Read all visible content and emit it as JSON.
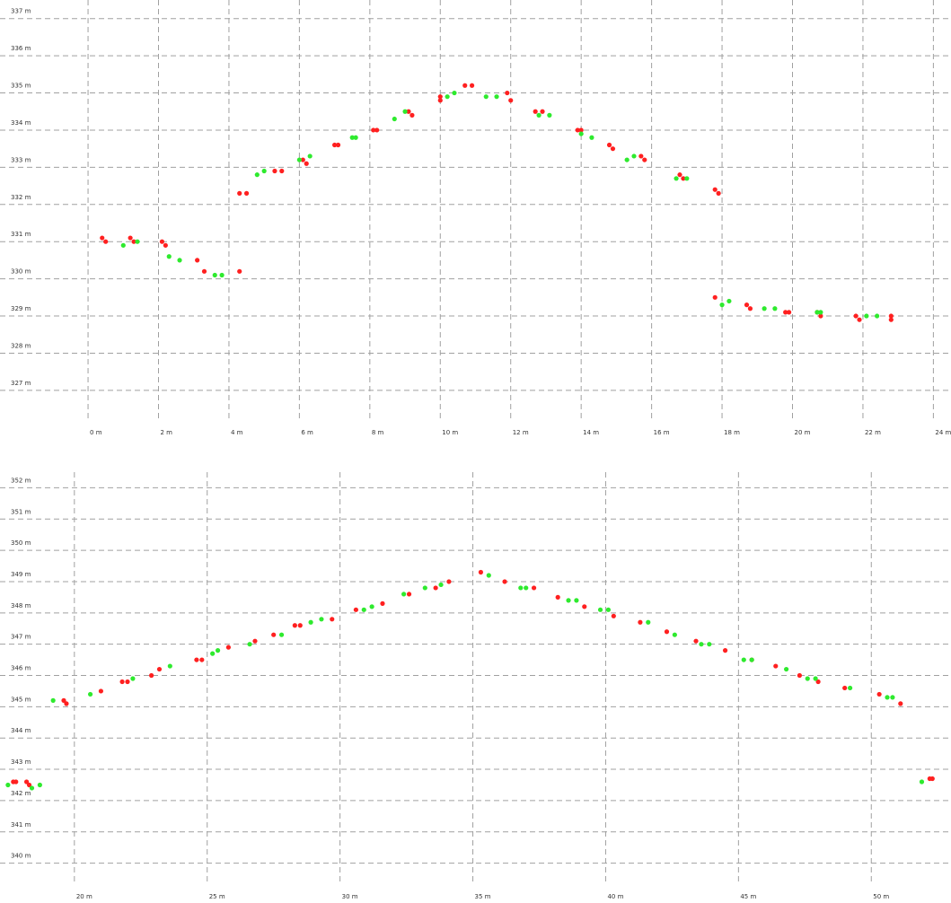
{
  "colors": {
    "series_a": "#ff2020",
    "series_b": "#2eea2e",
    "grid": "#a0a0a0"
  },
  "chart_data": [
    {
      "type": "scatter",
      "grid": true,
      "xlim": [
        -2.5,
        24.5
      ],
      "ylim": [
        326.2,
        337.5
      ],
      "x_ticks": [
        0,
        2,
        4,
        6,
        8,
        10,
        12,
        14,
        16,
        18,
        20,
        22,
        24
      ],
      "x_tick_labels": [
        "0 m",
        "2 m",
        "4 m",
        "6 m",
        "8 m",
        "10 m",
        "12 m",
        "14 m",
        "16 m",
        "18 m",
        "20 m",
        "22 m",
        "24 m"
      ],
      "y_ticks": [
        327,
        328,
        329,
        330,
        331,
        332,
        333,
        334,
        335,
        336,
        337
      ],
      "y_tick_labels": [
        "327 m",
        "328 m",
        "329 m",
        "330 m",
        "331 m",
        "332 m",
        "333 m",
        "334 m",
        "335 m",
        "336 m",
        "337 m"
      ],
      "series": [
        {
          "color": "#ff2020",
          "points": [
            [
              0.4,
              331.1
            ],
            [
              0.5,
              331.0
            ],
            [
              1.2,
              331.1
            ],
            [
              1.3,
              331.0
            ],
            [
              2.1,
              331.0
            ],
            [
              2.2,
              330.9
            ],
            [
              3.1,
              330.5
            ],
            [
              3.3,
              330.2
            ],
            [
              4.3,
              330.2
            ],
            [
              4.3,
              332.3
            ],
            [
              4.5,
              332.3
            ],
            [
              5.3,
              332.9
            ],
            [
              5.5,
              332.9
            ],
            [
              6.1,
              333.2
            ],
            [
              6.2,
              333.1
            ],
            [
              7.0,
              333.6
            ],
            [
              7.1,
              333.6
            ],
            [
              8.1,
              334.0
            ],
            [
              8.2,
              334.0
            ],
            [
              9.1,
              334.5
            ],
            [
              9.2,
              334.4
            ],
            [
              10.0,
              334.9
            ],
            [
              10.0,
              334.8
            ],
            [
              10.7,
              335.2
            ],
            [
              10.9,
              335.2
            ],
            [
              11.9,
              335.0
            ],
            [
              12.0,
              334.8
            ],
            [
              12.7,
              334.5
            ],
            [
              12.9,
              334.5
            ],
            [
              13.9,
              334.0
            ],
            [
              14.0,
              334.0
            ],
            [
              14.8,
              333.6
            ],
            [
              14.9,
              333.5
            ],
            [
              15.7,
              333.3
            ],
            [
              15.8,
              333.2
            ],
            [
              16.8,
              332.8
            ],
            [
              16.9,
              332.7
            ],
            [
              17.8,
              332.4
            ],
            [
              17.9,
              332.3
            ],
            [
              17.8,
              329.5
            ],
            [
              18.7,
              329.3
            ],
            [
              18.8,
              329.2
            ],
            [
              19.8,
              329.1
            ],
            [
              19.9,
              329.1
            ],
            [
              20.7,
              329.1
            ],
            [
              20.8,
              329.0
            ],
            [
              21.8,
              329.0
            ],
            [
              21.9,
              328.9
            ],
            [
              22.8,
              329.0
            ],
            [
              22.8,
              328.9
            ]
          ]
        },
        {
          "color": "#2eea2e",
          "points": [
            [
              1.0,
              330.9
            ],
            [
              1.4,
              331.0
            ],
            [
              2.3,
              330.6
            ],
            [
              2.6,
              330.5
            ],
            [
              3.6,
              330.1
            ],
            [
              3.8,
              330.1
            ],
            [
              4.8,
              332.8
            ],
            [
              5.0,
              332.9
            ],
            [
              6.0,
              333.2
            ],
            [
              6.3,
              333.3
            ],
            [
              7.5,
              333.8
            ],
            [
              7.6,
              333.8
            ],
            [
              8.7,
              334.3
            ],
            [
              9.0,
              334.5
            ],
            [
              10.2,
              334.9
            ],
            [
              10.4,
              335.0
            ],
            [
              11.3,
              334.9
            ],
            [
              11.6,
              334.9
            ],
            [
              12.8,
              334.4
            ],
            [
              13.1,
              334.4
            ],
            [
              14.0,
              333.9
            ],
            [
              14.3,
              333.8
            ],
            [
              15.3,
              333.2
            ],
            [
              15.5,
              333.3
            ],
            [
              16.7,
              332.7
            ],
            [
              17.0,
              332.7
            ],
            [
              18.0,
              329.3
            ],
            [
              18.2,
              329.4
            ],
            [
              19.2,
              329.2
            ],
            [
              19.5,
              329.2
            ],
            [
              20.7,
              329.1
            ],
            [
              20.8,
              329.1
            ],
            [
              22.1,
              329.0
            ],
            [
              22.4,
              329.0
            ]
          ]
        }
      ]
    },
    {
      "type": "scatter",
      "grid": true,
      "xlim": [
        17.2,
        53.0
      ],
      "ylim": [
        339.3,
        352.5
      ],
      "x_ticks": [
        20,
        25,
        30,
        35,
        40,
        45,
        50
      ],
      "x_tick_labels": [
        "20 m",
        "25 m",
        "30 m",
        "35 m",
        "40 m",
        "45 m",
        "50 m"
      ],
      "y_ticks": [
        340,
        341,
        342,
        343,
        344,
        345,
        346,
        347,
        348,
        349,
        350,
        351,
        352
      ],
      "y_tick_labels": [
        "340 m",
        "341 m",
        "342 m",
        "343 m",
        "344 m",
        "345 m",
        "346 m",
        "347 m",
        "348 m",
        "349 m",
        "350 m",
        "351 m",
        "352 m"
      ],
      "series": [
        {
          "color": "#ff2020",
          "points": [
            [
              17.7,
              342.6
            ],
            [
              17.8,
              342.6
            ],
            [
              18.2,
              342.6
            ],
            [
              18.3,
              342.5
            ],
            [
              19.6,
              345.2
            ],
            [
              19.7,
              345.1
            ],
            [
              21.0,
              345.5
            ],
            [
              21.8,
              345.8
            ],
            [
              22.0,
              345.8
            ],
            [
              22.9,
              346.0
            ],
            [
              23.2,
              346.2
            ],
            [
              24.6,
              346.5
            ],
            [
              24.8,
              346.5
            ],
            [
              25.8,
              346.9
            ],
            [
              26.8,
              347.1
            ],
            [
              27.5,
              347.3
            ],
            [
              28.3,
              347.6
            ],
            [
              28.5,
              347.6
            ],
            [
              29.7,
              347.8
            ],
            [
              30.6,
              348.1
            ],
            [
              31.6,
              348.3
            ],
            [
              32.6,
              348.6
            ],
            [
              33.6,
              348.8
            ],
            [
              34.1,
              349.0
            ],
            [
              35.3,
              349.3
            ],
            [
              36.2,
              349.0
            ],
            [
              37.3,
              348.8
            ],
            [
              38.2,
              348.5
            ],
            [
              39.2,
              348.2
            ],
            [
              40.3,
              347.9
            ],
            [
              41.3,
              347.7
            ],
            [
              42.3,
              347.4
            ],
            [
              43.4,
              347.1
            ],
            [
              44.5,
              346.8
            ],
            [
              45.5,
              346.5
            ],
            [
              46.4,
              346.3
            ],
            [
              47.3,
              346.0
            ],
            [
              48.0,
              345.8
            ],
            [
              49.0,
              345.6
            ],
            [
              50.3,
              345.4
            ],
            [
              51.1,
              345.1
            ],
            [
              52.2,
              342.7
            ],
            [
              52.3,
              342.7
            ]
          ]
        },
        {
          "color": "#2eea2e",
          "points": [
            [
              17.5,
              342.5
            ],
            [
              18.4,
              342.4
            ],
            [
              18.7,
              342.5
            ],
            [
              19.2,
              345.2
            ],
            [
              20.6,
              345.4
            ],
            [
              22.2,
              345.9
            ],
            [
              23.6,
              346.3
            ],
            [
              25.2,
              346.7
            ],
            [
              25.4,
              346.8
            ],
            [
              26.6,
              347.0
            ],
            [
              27.8,
              347.3
            ],
            [
              28.9,
              347.7
            ],
            [
              29.3,
              347.8
            ],
            [
              30.9,
              348.1
            ],
            [
              31.2,
              348.2
            ],
            [
              32.4,
              348.6
            ],
            [
              33.2,
              348.8
            ],
            [
              33.8,
              348.9
            ],
            [
              35.6,
              349.2
            ],
            [
              36.8,
              348.8
            ],
            [
              37.0,
              348.8
            ],
            [
              38.6,
              348.4
            ],
            [
              38.9,
              348.4
            ],
            [
              39.8,
              348.1
            ],
            [
              40.1,
              348.1
            ],
            [
              41.6,
              347.7
            ],
            [
              42.6,
              347.3
            ],
            [
              43.6,
              347.0
            ],
            [
              43.9,
              347.0
            ],
            [
              45.2,
              346.5
            ],
            [
              45.5,
              346.5
            ],
            [
              46.8,
              346.2
            ],
            [
              47.6,
              345.9
            ],
            [
              47.9,
              345.9
            ],
            [
              49.2,
              345.6
            ],
            [
              50.6,
              345.3
            ],
            [
              50.8,
              345.3
            ],
            [
              51.9,
              342.6
            ]
          ]
        }
      ]
    }
  ]
}
